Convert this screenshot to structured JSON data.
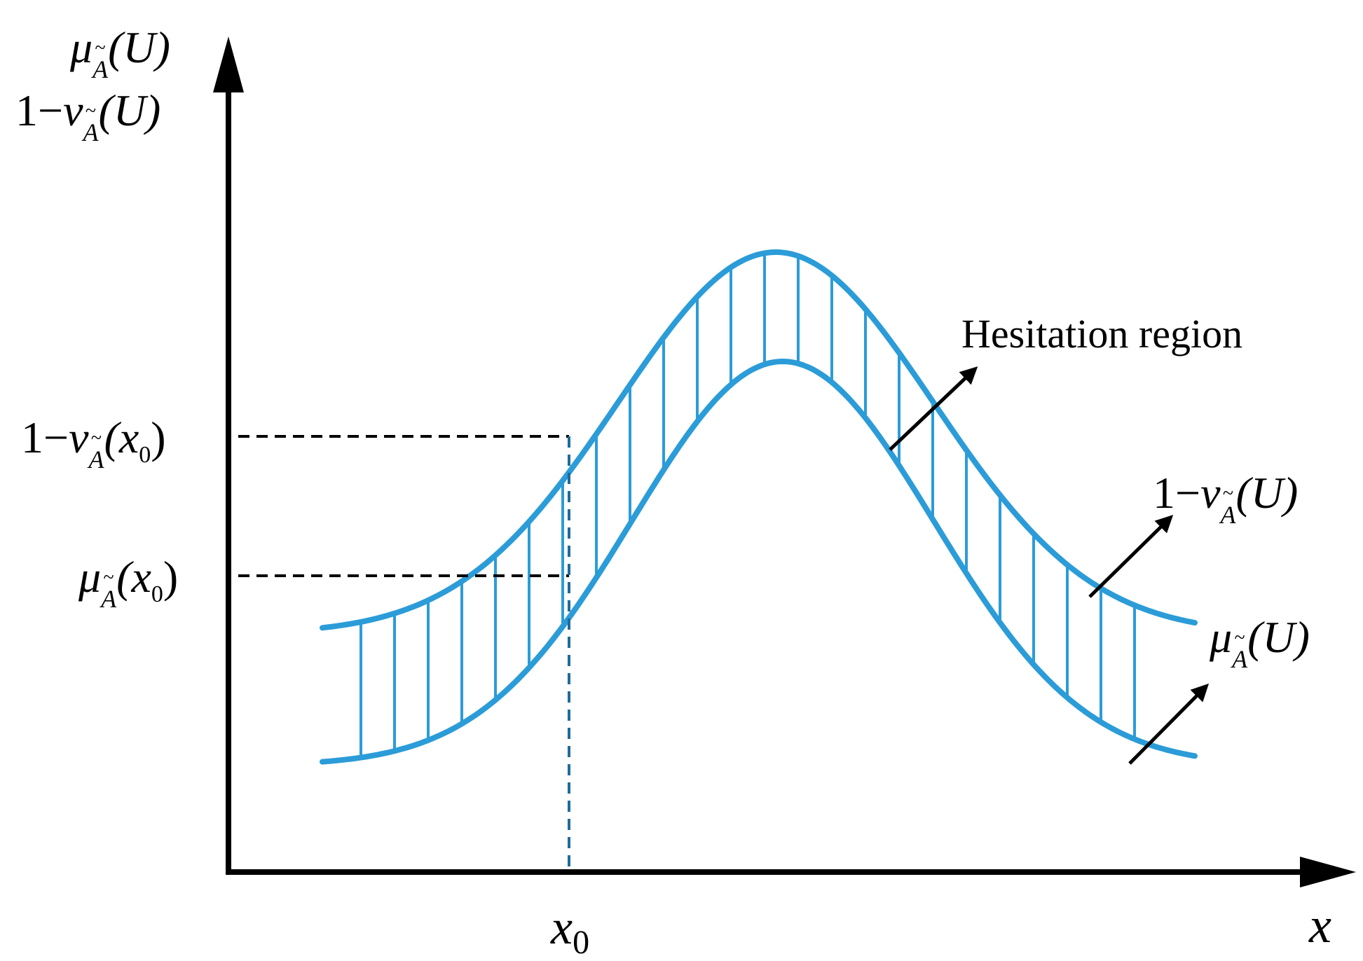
{
  "colors": {
    "curve": "#2b9cd8",
    "axis": "#000000",
    "dashed_x0": "#1f6b9c"
  },
  "axes": {
    "y_label_line1": {
      "fn": "μ",
      "sub": "A",
      "arg": "(U)"
    },
    "y_label_line2": {
      "prefix": "1−",
      "fn": "ν",
      "sub": "A",
      "arg": "(U)"
    },
    "x_label": "x"
  },
  "ticks": {
    "x0": {
      "base": "x",
      "sub": "0"
    },
    "upper_at_x0": {
      "prefix": "1−",
      "fn": "ν",
      "sub": "A",
      "arg_open": "(x",
      "arg_sub": "0",
      "arg_close": ")"
    },
    "lower_at_x0": {
      "fn": "μ",
      "sub": "A",
      "arg_open": "(x",
      "arg_sub": "0",
      "arg_close": ")"
    }
  },
  "annotations": {
    "hesitation": "Hesitation region",
    "upper_curve": {
      "prefix": "1−",
      "fn": "ν",
      "sub": "A",
      "arg": "(U)"
    },
    "lower_curve": {
      "fn": "μ",
      "sub": "A",
      "arg": "(U)"
    }
  }
}
